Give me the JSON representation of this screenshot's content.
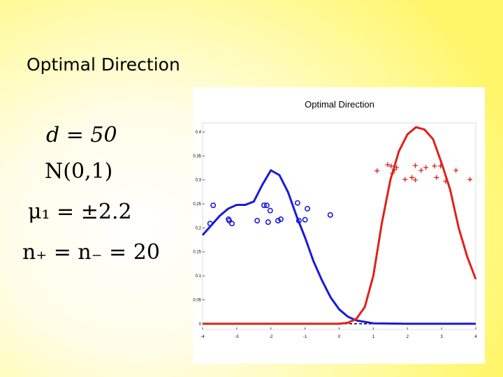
{
  "slide_title": "Optimal Direction",
  "formulas": [
    "d = 50",
    "N(0,1)",
    "μ₁ = ±2.2",
    "n₊ = n₋ = 20"
  ],
  "chart_data": {
    "type": "line",
    "title": "Optimal Direction",
    "xlim": [
      -4,
      4
    ],
    "xticks": [
      -4,
      -3,
      -2,
      -1,
      0,
      1,
      2,
      3,
      4
    ],
    "ylim": [
      -0.012,
      0.419
    ],
    "yticks": [
      0,
      0.05,
      0.1,
      0.15,
      0.2,
      0.25,
      0.3,
      0.35,
      0.4
    ],
    "series": [
      {
        "color": "#000000",
        "dash": true,
        "x": [
          -4,
          4
        ],
        "values": [
          0,
          0
        ]
      },
      {
        "color": "#1a1adb",
        "x": [
          -4,
          -3.5,
          -3.25,
          -3,
          -2.75,
          -2.5,
          -2.25,
          -2,
          -1.75,
          -1.5,
          -1.25,
          -1,
          -0.75,
          -0.5,
          -0.25,
          0,
          0.25,
          0.5,
          1,
          2,
          4
        ],
        "values": [
          0.185,
          0.225,
          0.24,
          0.248,
          0.248,
          0.255,
          0.29,
          0.32,
          0.31,
          0.275,
          0.225,
          0.18,
          0.13,
          0.09,
          0.055,
          0.03,
          0.015,
          0.007,
          0.001,
          0,
          0
        ]
      },
      {
        "color": "#e0201a",
        "x": [
          -4,
          0,
          0.25,
          0.5,
          0.75,
          1,
          1.25,
          1.5,
          1.75,
          2,
          2.25,
          2.5,
          2.75,
          3,
          3.25,
          3.5,
          3.75,
          4
        ],
        "values": [
          0,
          0,
          0.002,
          0.01,
          0.035,
          0.1,
          0.21,
          0.3,
          0.36,
          0.395,
          0.41,
          0.405,
          0.385,
          0.335,
          0.28,
          0.2,
          0.14,
          0.093
        ]
      },
      {
        "color": "#1a1adb",
        "marker": "o",
        "x": [
          -3.69,
          -3.78,
          -3.24,
          -3.14,
          -3.22,
          -2.2,
          -2.12,
          -2.02,
          -2.4,
          -2.08,
          -1.79,
          -1.71,
          -1.22,
          -0.93,
          -1.18,
          -1.0,
          -0.26
        ],
        "values": [
          0.247,
          0.209,
          0.218,
          0.209,
          0.215,
          0.247,
          0.247,
          0.236,
          0.215,
          0.212,
          0.215,
          0.218,
          0.252,
          0.24,
          0.215,
          0.217,
          0.227
        ]
      },
      {
        "color": "#e0201a",
        "marker": "+",
        "x": [
          1.11,
          1.42,
          1.52,
          1.62,
          1.68,
          1.56,
          1.93,
          2.13,
          2.23,
          2.23,
          2.4,
          2.54,
          2.79,
          2.97,
          2.85,
          3.12,
          3.42,
          3.83
        ],
        "values": [
          0.319,
          0.332,
          0.329,
          0.321,
          0.326,
          0.314,
          0.301,
          0.305,
          0.3,
          0.33,
          0.32,
          0.326,
          0.329,
          0.329,
          0.305,
          0.297,
          0.32,
          0.301
        ]
      }
    ]
  }
}
